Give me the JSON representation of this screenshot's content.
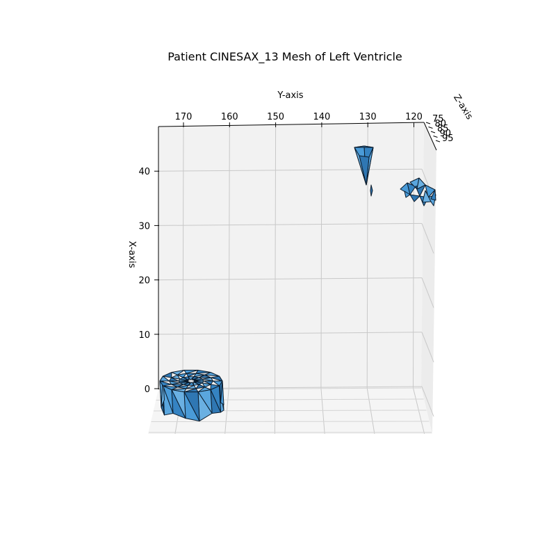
{
  "chart_data": {
    "type": "surface3d",
    "title": "Patient CINESAX_13 Mesh of Left Ventricle",
    "xlabel": "X-axis",
    "ylabel": "Y-axis",
    "zlabel": "Z-axis",
    "x_ticks": [
      0,
      10,
      20,
      30,
      40
    ],
    "y_ticks": [
      170,
      160,
      150,
      140,
      130,
      120
    ],
    "z_ticks": [
      75,
      80,
      85,
      90,
      95
    ],
    "xlim": [
      -8,
      48
    ],
    "ylim": [
      176,
      117
    ],
    "zlim": [
      74,
      97
    ],
    "grid": true,
    "face_color": "#3a8fd0",
    "edge_color": "#0a1a2a",
    "mesh_regions": [
      {
        "name": "",
        "x_range": [
          -5,
          3
        ],
        "y_range": [
          174,
          162
        ],
        "z_range": [
          75,
          95
        ]
      },
      {
        "name": "",
        "x_range": [
          38,
          44
        ],
        "y_range": [
          131,
          128
        ],
        "z_range": [
          75,
          80
        ]
      },
      {
        "name": "",
        "x_range": [
          34,
          36
        ],
        "y_range": [
          129.5,
          128.5
        ],
        "z_range": [
          75,
          76
        ]
      },
      {
        "name": "",
        "x_range": [
          33,
          36
        ],
        "y_range": [
          122,
          117
        ],
        "z_range": [
          80,
          95
        ]
      }
    ]
  }
}
